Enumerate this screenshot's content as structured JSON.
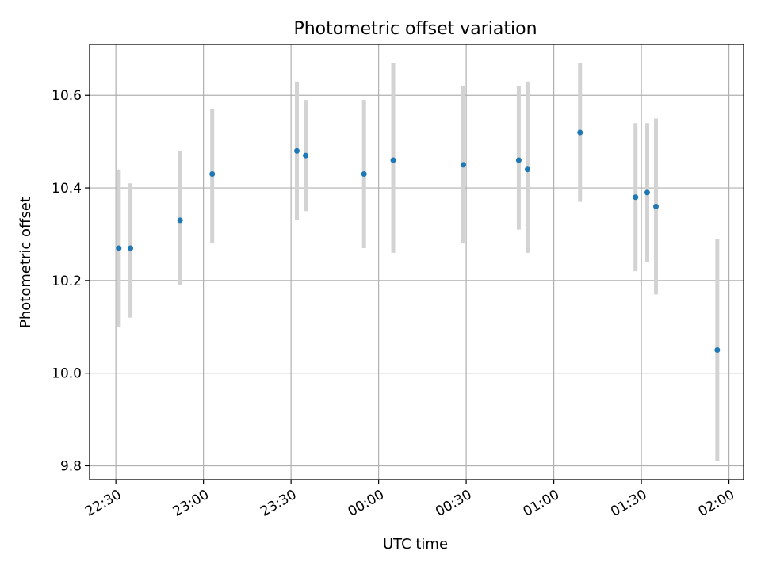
{
  "chart_data": {
    "type": "scatter",
    "title": "Photometric offset variation",
    "xlabel": "UTC time",
    "ylabel": "Photometric offset",
    "x_ticks": [
      "22:30",
      "23:00",
      "23:30",
      "00:00",
      "00:30",
      "01:00",
      "01:30",
      "02:00"
    ],
    "y_ticks": [
      "9.8",
      "10.0",
      "10.2",
      "10.4",
      "10.6"
    ],
    "xlim": [
      "22:21",
      "02:05"
    ],
    "ylim": [
      9.77,
      10.71
    ],
    "grid": true,
    "point_color": "#1f77b4",
    "errorbar_color": "#d3d3d3",
    "points": [
      {
        "x": "22:31",
        "y": 10.27,
        "ylow": 10.1,
        "yhigh": 10.44
      },
      {
        "x": "22:35",
        "y": 10.27,
        "ylow": 10.12,
        "yhigh": 10.41
      },
      {
        "x": "22:52",
        "y": 10.33,
        "ylow": 10.19,
        "yhigh": 10.48
      },
      {
        "x": "23:03",
        "y": 10.43,
        "ylow": 10.28,
        "yhigh": 10.57
      },
      {
        "x": "23:32",
        "y": 10.48,
        "ylow": 10.33,
        "yhigh": 10.63
      },
      {
        "x": "23:35",
        "y": 10.47,
        "ylow": 10.35,
        "yhigh": 10.59
      },
      {
        "x": "23:55",
        "y": 10.43,
        "ylow": 10.27,
        "yhigh": 10.59
      },
      {
        "x": "00:05",
        "y": 10.46,
        "ylow": 10.26,
        "yhigh": 10.67
      },
      {
        "x": "00:29",
        "y": 10.45,
        "ylow": 10.28,
        "yhigh": 10.62
      },
      {
        "x": "00:48",
        "y": 10.46,
        "ylow": 10.31,
        "yhigh": 10.62
      },
      {
        "x": "00:51",
        "y": 10.44,
        "ylow": 10.26,
        "yhigh": 10.63
      },
      {
        "x": "01:09",
        "y": 10.52,
        "ylow": 10.37,
        "yhigh": 10.67
      },
      {
        "x": "01:28",
        "y": 10.38,
        "ylow": 10.22,
        "yhigh": 10.54
      },
      {
        "x": "01:32",
        "y": 10.39,
        "ylow": 10.24,
        "yhigh": 10.54
      },
      {
        "x": "01:35",
        "y": 10.36,
        "ylow": 10.17,
        "yhigh": 10.55
      },
      {
        "x": "01:56",
        "y": 10.05,
        "ylow": 9.81,
        "yhigh": 10.29
      }
    ]
  }
}
